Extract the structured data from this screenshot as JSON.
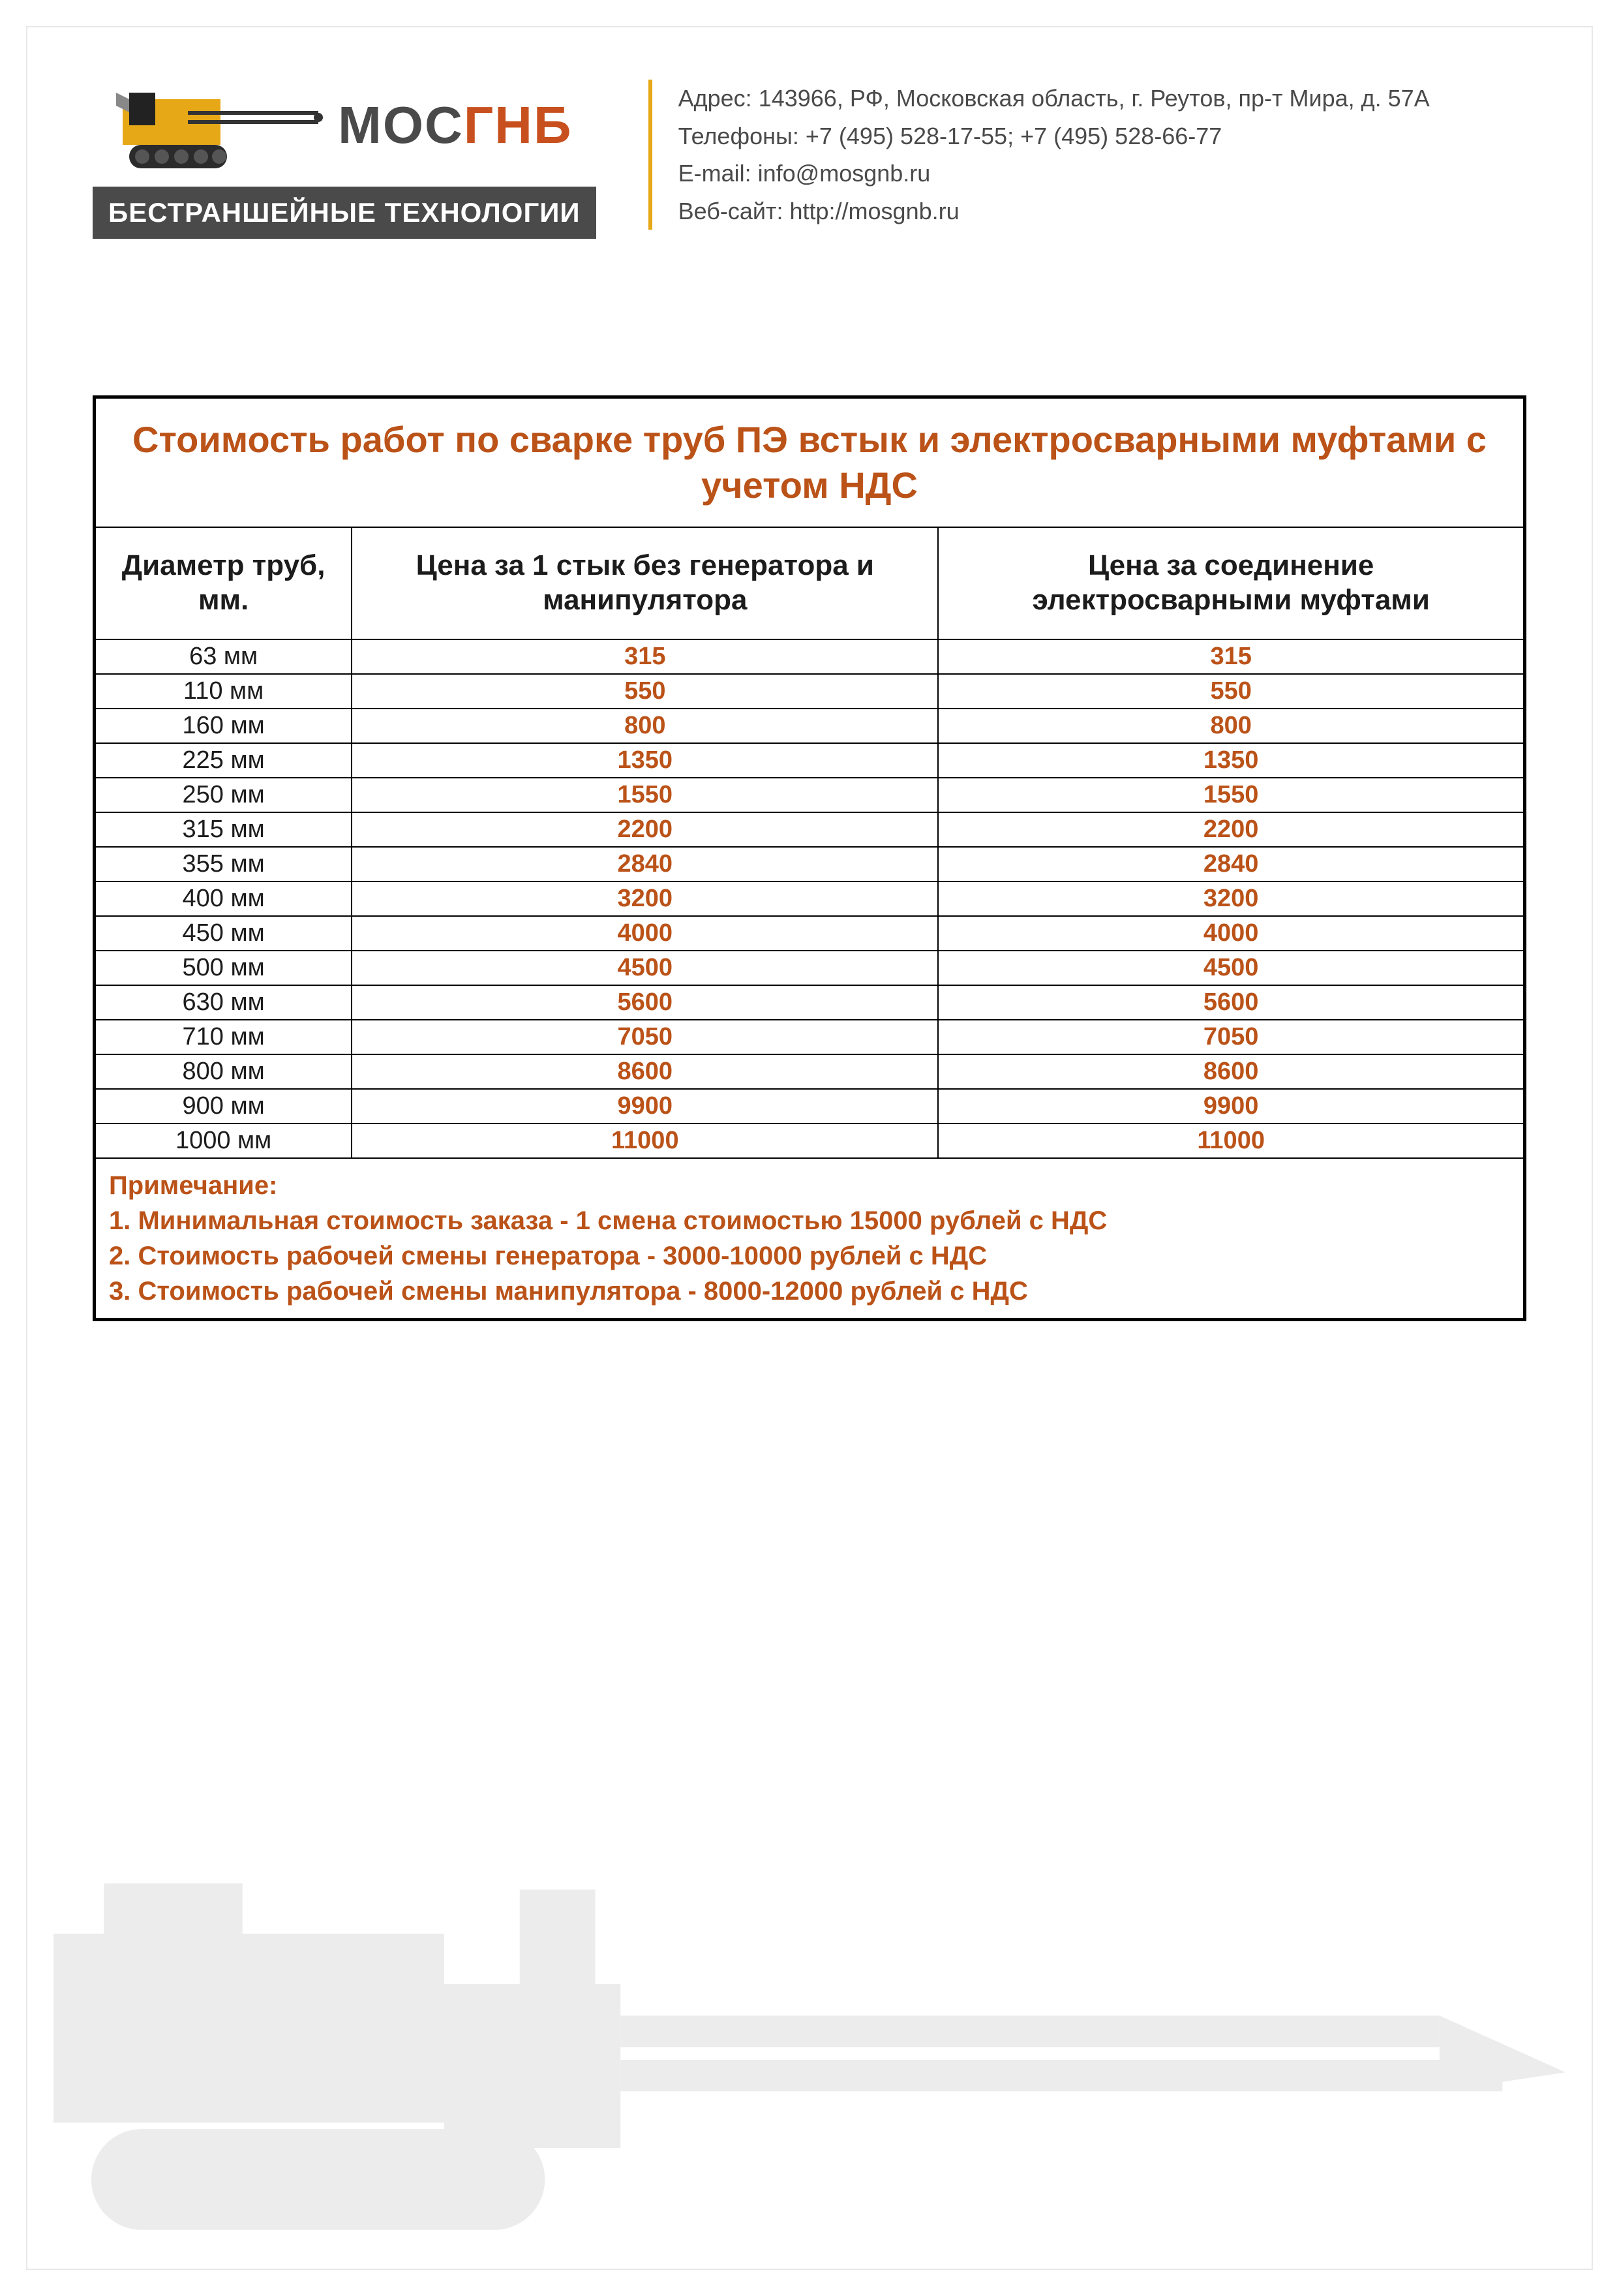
{
  "colors": {
    "accent": "#bb5218",
    "logo_gnb": "#c8501e",
    "header_rule": "#e6a817",
    "machine_body": "#e6a817",
    "machine_cab": "#222222",
    "machine_track": "#2b2b2b",
    "text_body": "#4a4a4a",
    "border_black": "#000000",
    "page_border": "#e8e8e8",
    "bg": "#ffffff",
    "watermark": "#ececec"
  },
  "logo": {
    "line1_a": "МОС",
    "line1_b": "ГНБ",
    "tagline": "Бестраншейные технологии"
  },
  "contact": {
    "address_label": "Адрес: ",
    "address": "143966, РФ, Московская область, г. Реутов, пр-т Мира, д. 57А",
    "phones_label": "Телефоны: ",
    "phones": "+7 (495) 528-17-55; +7 (495) 528-66-77",
    "email_label": "E-mail: ",
    "email": "info@mosgnb.ru",
    "web_label": "Веб-сайт: ",
    "web": "http://mosgnb.ru"
  },
  "table": {
    "title": "Стоимость работ по сварке труб ПЭ встык и электросварными муфтами с учетом НДС",
    "columns": [
      "Диаметр труб, мм.",
      "Цена за 1 стык без генератора и манипулятора",
      "Цена за соединение электросварными муфтами"
    ],
    "rows": [
      [
        "63 мм",
        "315",
        "315"
      ],
      [
        "110 мм",
        "550",
        "550"
      ],
      [
        "160 мм",
        "800",
        "800"
      ],
      [
        "225 мм",
        "1350",
        "1350"
      ],
      [
        "250 мм",
        "1550",
        "1550"
      ],
      [
        "315 мм",
        "2200",
        "2200"
      ],
      [
        "355 мм",
        "2840",
        "2840"
      ],
      [
        "400 мм",
        "3200",
        "3200"
      ],
      [
        "450 мм",
        "4000",
        "4000"
      ],
      [
        "500 мм",
        "4500",
        "4500"
      ],
      [
        "630 мм",
        "5600",
        "5600"
      ],
      [
        "710 мм",
        "7050",
        "7050"
      ],
      [
        "800 мм",
        "8600",
        "8600"
      ],
      [
        "900 мм",
        "9900",
        "9900"
      ],
      [
        "1000 мм",
        "11000",
        "11000"
      ]
    ],
    "notes_title": "Примечание:",
    "notes": [
      "1. Минимальная стоимость заказа - 1 смена стоимостью 15000 рублей с НДС",
      "2. Стоимость рабочей смены генератора - 3000-10000 рублей с НДС",
      "3. Стоимость рабочей смены манипулятора - 8000-12000 рублей с НДС"
    ]
  }
}
